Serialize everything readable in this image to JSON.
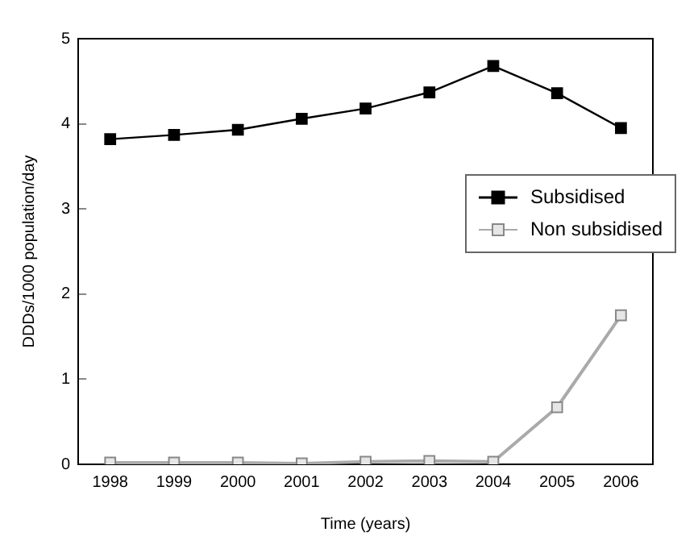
{
  "chart_data": {
    "type": "line",
    "xlabel": "Time (years)",
    "ylabel": "DDDs/1000 population/day",
    "categories": [
      "1998",
      "1999",
      "2000",
      "2001",
      "2002",
      "2003",
      "2004",
      "2005",
      "2006"
    ],
    "series": [
      {
        "name": "Subsidised",
        "color": "#000000",
        "values": [
          3.82,
          3.87,
          3.93,
          4.06,
          4.18,
          4.37,
          4.68,
          4.36,
          3.95
        ]
      },
      {
        "name": "Non subsidised",
        "color": "#aaaaaa",
        "values": [
          0.02,
          0.02,
          0.02,
          0.01,
          0.03,
          0.04,
          0.03,
          0.67,
          1.75
        ]
      }
    ],
    "ylim": [
      0,
      5
    ],
    "yticks": [
      0,
      1,
      2,
      3,
      4,
      5
    ],
    "grid": false,
    "legend": "right",
    "marker": "square",
    "line_style": "solid"
  }
}
